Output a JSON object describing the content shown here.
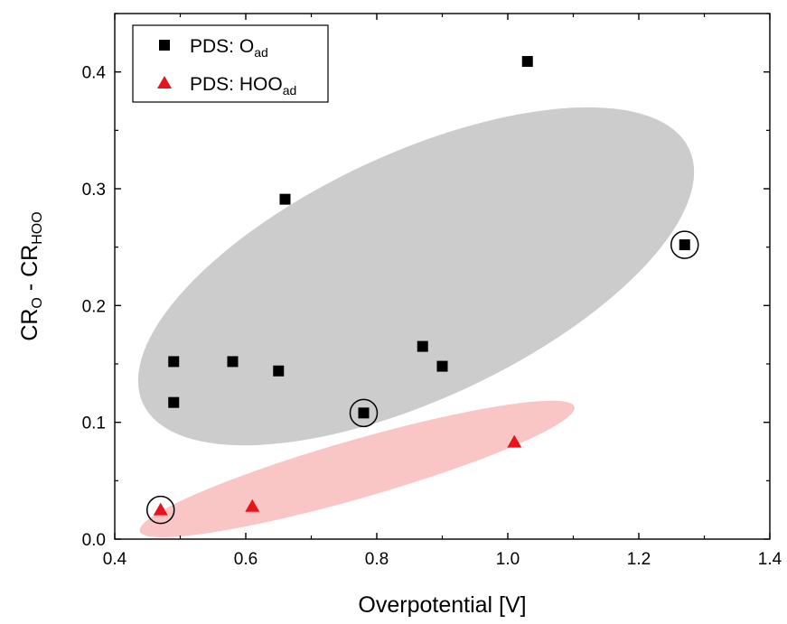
{
  "chart_data": {
    "type": "scatter",
    "title": "",
    "xlabel": "Overpotential [V]",
    "ylabel": {
      "main1": "CR",
      "sub1": "O",
      "mid": " - CR",
      "sub2": "HOO"
    },
    "xlim": [
      0.4,
      1.4
    ],
    "ylim": [
      0.0,
      0.45
    ],
    "x_ticks": [
      {
        "value": 0.4,
        "label": "0.4"
      },
      {
        "value": 0.6,
        "label": "0.6"
      },
      {
        "value": 0.8,
        "label": "0.8"
      },
      {
        "value": 1.0,
        "label": "1.0"
      },
      {
        "value": 1.2,
        "label": "1.2"
      },
      {
        "value": 1.4,
        "label": "1.4"
      }
    ],
    "y_ticks": [
      {
        "value": 0.0,
        "label": "0.0"
      },
      {
        "value": 0.1,
        "label": "0.1"
      },
      {
        "value": 0.2,
        "label": "0.2"
      },
      {
        "value": 0.3,
        "label": "0.3"
      },
      {
        "value": 0.4,
        "label": "0.4"
      }
    ],
    "grid": false,
    "legend_position": "top-left",
    "series": [
      {
        "name": "PDS: O",
        "name_sub": "ad",
        "marker": "square",
        "color": "#000000",
        "points": [
          {
            "x": 0.49,
            "y": 0.152
          },
          {
            "x": 0.49,
            "y": 0.117
          },
          {
            "x": 0.58,
            "y": 0.152
          },
          {
            "x": 0.65,
            "y": 0.144
          },
          {
            "x": 0.66,
            "y": 0.291
          },
          {
            "x": 0.78,
            "y": 0.108
          },
          {
            "x": 0.87,
            "y": 0.165
          },
          {
            "x": 0.9,
            "y": 0.148
          },
          {
            "x": 1.03,
            "y": 0.409
          },
          {
            "x": 1.27,
            "y": 0.252
          }
        ]
      },
      {
        "name": "PDS: HOO",
        "name_sub": "ad",
        "marker": "triangle",
        "color": "#e8141b",
        "points": [
          {
            "x": 0.47,
            "y": 0.025
          },
          {
            "x": 0.61,
            "y": 0.028
          },
          {
            "x": 1.01,
            "y": 0.083
          }
        ]
      }
    ],
    "highlighted_points": [
      {
        "x": 0.47,
        "y": 0.025
      },
      {
        "x": 0.78,
        "y": 0.108
      },
      {
        "x": 1.27,
        "y": 0.252
      }
    ],
    "regions": [
      {
        "name": "O-ad group region",
        "color": "#cccccc",
        "cx": 0.86,
        "cy": 0.225,
        "rx": 0.46,
        "ry": 0.105,
        "angle_deg": -25
      },
      {
        "name": "HOO-ad group region",
        "color": "#f9c5c5",
        "cx": 0.77,
        "cy": 0.06,
        "rx": 0.345,
        "ry": 0.025,
        "angle_deg": -16
      }
    ]
  }
}
